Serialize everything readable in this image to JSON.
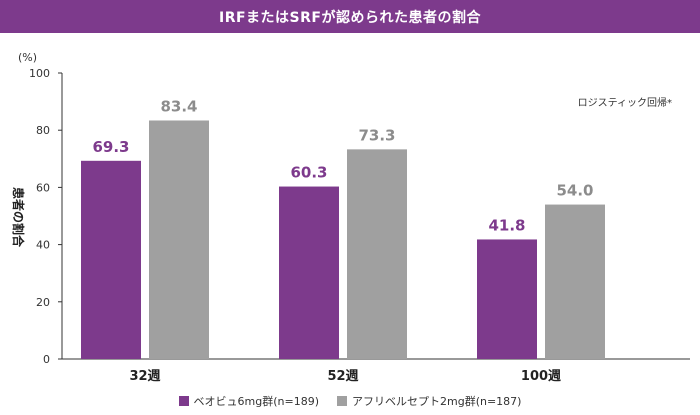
{
  "colors": {
    "title_bg": "#7d3a8c",
    "series1": "#7d3a8c",
    "series2": "#a0a0a0",
    "label1": "#7d3a8c",
    "label2": "#8c8c8c"
  },
  "chart_data": {
    "type": "bar",
    "title": "IRFまたはSRFが認められた患者の割合",
    "ylabel": "患者の割合",
    "unit": "(%)",
    "annotation": "ロジスティック回帰*",
    "categories": [
      "32週",
      "52週",
      "100週"
    ],
    "yticks": [
      "0",
      "20",
      "40",
      "60",
      "80",
      "100"
    ],
    "ylim": [
      0,
      100
    ],
    "grid": false,
    "legend_position": "bottom",
    "series": [
      {
        "name": "ベオビュ6mg群(n=189)",
        "values": [
          69.3,
          60.3,
          41.8
        ],
        "labels": [
          "69.3",
          "60.3",
          "41.8"
        ]
      },
      {
        "name": "アフリベルセプト2mg群(n=187)",
        "values": [
          83.4,
          73.3,
          54.0
        ],
        "labels": [
          "83.4",
          "73.3",
          "54.0"
        ]
      }
    ]
  }
}
